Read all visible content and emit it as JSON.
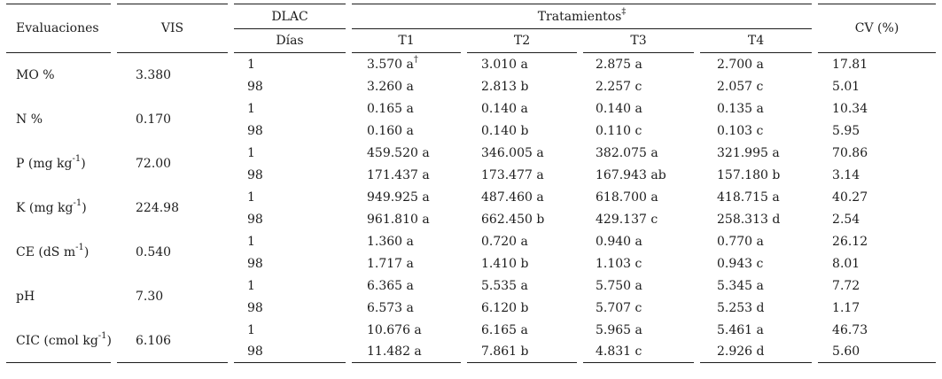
{
  "table": {
    "header": {
      "evaluaciones": "Evaluaciones",
      "vis": "VIS",
      "dlac": "DLAC",
      "dias": "Días",
      "tratamientos": "Tratamientos",
      "tratamientos_sup": "‡",
      "treatment_cols": [
        "T1",
        "T2",
        "T3",
        "T4"
      ],
      "cv": "CV (%)"
    },
    "rows": [
      {
        "label_pre": "MO %",
        "vis": "3.380",
        "sub": [
          {
            "day": "1",
            "values": [
              "3.570 a",
              "3.010 a",
              "2.875 a",
              "2.700 a"
            ],
            "sups": [
              "†",
              "",
              "",
              ""
            ],
            "cv": "17.81"
          },
          {
            "day": "98",
            "values": [
              "3.260 a",
              "2.813 b",
              "2.257 c",
              "2.057 c"
            ],
            "cv": "5.01"
          }
        ]
      },
      {
        "label_pre": "N %",
        "vis": "0.170",
        "sub": [
          {
            "day": "1",
            "values": [
              "0.165 a",
              "0.140 a",
              "0.140 a",
              "0.135 a"
            ],
            "cv": "10.34"
          },
          {
            "day": "98",
            "values": [
              "0.160 a",
              "0.140 b",
              "0.110 c",
              "0.103 c"
            ],
            "cv": "5.95"
          }
        ]
      },
      {
        "label_pre": "P (mg kg",
        "label_sup": "-1",
        "label_post": ")",
        "vis": "72.00",
        "sub": [
          {
            "day": "1",
            "values": [
              "459.520 a",
              "346.005 a",
              "382.075 a",
              "321.995 a"
            ],
            "cv": "70.86"
          },
          {
            "day": "98",
            "values": [
              "171.437 a",
              "173.477 a",
              "167.943 ab",
              "157.180 b"
            ],
            "cv": "3.14"
          }
        ]
      },
      {
        "label_pre": "K (mg kg",
        "label_sup": "-1",
        "label_post": ")",
        "vis": "224.98",
        "sub": [
          {
            "day": "1",
            "values": [
              "949.925 a",
              "487.460 a",
              "618.700 a",
              "418.715 a"
            ],
            "cv": "40.27"
          },
          {
            "day": "98",
            "values": [
              "961.810 a",
              "662.450 b",
              "429.137 c",
              "258.313 d"
            ],
            "cv": "2.54"
          }
        ]
      },
      {
        "label_pre": "CE (dS m",
        "label_sup": "-1",
        "label_post": ")",
        "vis": "0.540",
        "sub": [
          {
            "day": "1",
            "values": [
              "1.360 a",
              "0.720 a",
              "0.940 a",
              "0.770 a"
            ],
            "cv": "26.12"
          },
          {
            "day": "98",
            "values": [
              "1.717 a",
              "1.410 b",
              "1.103 c",
              "0.943 c"
            ],
            "cv": "8.01"
          }
        ]
      },
      {
        "label_pre": "pH",
        "vis": "7.30",
        "sub": [
          {
            "day": "1",
            "values": [
              "6.365 a",
              "5.535 a",
              "5.750 a",
              "5.345 a"
            ],
            "cv": "7.72"
          },
          {
            "day": "98",
            "values": [
              "6.573 a",
              "6.120 b",
              "5.707 c",
              "5.253 d"
            ],
            "cv": "1.17"
          }
        ]
      },
      {
        "label_pre": "CIC (cmol kg",
        "label_sup": "-1",
        "label_post": ")",
        "vis": "6.106",
        "sub": [
          {
            "day": "1",
            "values": [
              "10.676 a",
              "6.165 a",
              "5.965 a",
              "5.461 a"
            ],
            "cv": "46.73"
          },
          {
            "day": "98",
            "values": [
              "11.482 a",
              "7.861 b",
              "4.831 c",
              "2.926 d"
            ],
            "cv": "5.60"
          }
        ]
      }
    ]
  },
  "colors": {
    "background": "#ffffff",
    "text": "#1c1c1c",
    "rule": "#1c1c1c"
  }
}
